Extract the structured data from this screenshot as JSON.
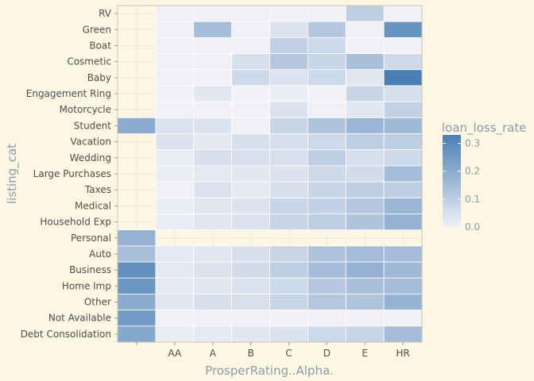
{
  "chart_data": {
    "type": "heatmap",
    "title": "",
    "xlabel": "ProsperRating..Alpha.",
    "ylabel": "listing_cat",
    "x_categories": [
      "",
      "AA",
      "A",
      "B",
      "C",
      "D",
      "E",
      "HR"
    ],
    "y_categories": [
      "RV",
      "Green",
      "Boat",
      "Cosmetic",
      "Baby",
      "Engagement Ring",
      "Motorcycle",
      "Student",
      "Vacation",
      "Wedding",
      "Large Purchases",
      "Taxes",
      "Medical",
      "Household Exp",
      "Personal",
      "Auto",
      "Business",
      "Home Imp",
      "Other",
      "Not Available",
      "Debt Consolidation"
    ],
    "values": [
      [
        null,
        0.0,
        0.0,
        0.0,
        0.0,
        0.0,
        0.1,
        0.0
      ],
      [
        null,
        0.0,
        0.15,
        0.0,
        0.04,
        0.12,
        0.0,
        0.27
      ],
      [
        null,
        0.0,
        0.0,
        0.0,
        0.09,
        0.07,
        0.0,
        0.0
      ],
      [
        null,
        0.0,
        0.0,
        0.05,
        0.12,
        0.08,
        0.14,
        0.07
      ],
      [
        null,
        0.0,
        0.0,
        0.07,
        0.04,
        0.07,
        0.03,
        0.33
      ],
      [
        null,
        0.0,
        0.03,
        0.0,
        0.01,
        0.0,
        0.08,
        0.05
      ],
      [
        null,
        0.0,
        0.0,
        0.0,
        0.04,
        0.0,
        0.03,
        0.09
      ],
      [
        0.2,
        0.04,
        0.04,
        0.0,
        0.08,
        0.13,
        0.17,
        0.16
      ],
      [
        null,
        0.04,
        0.02,
        0.05,
        0.05,
        0.07,
        0.1,
        0.1
      ],
      [
        null,
        0.01,
        0.05,
        0.05,
        0.05,
        0.1,
        0.05,
        0.07
      ],
      [
        null,
        0.01,
        0.02,
        0.03,
        0.04,
        0.07,
        0.06,
        0.15
      ],
      [
        null,
        0.0,
        0.04,
        0.02,
        0.05,
        0.08,
        0.1,
        0.1
      ],
      [
        null,
        0.01,
        0.03,
        0.04,
        0.08,
        0.09,
        0.12,
        0.17
      ],
      [
        null,
        0.01,
        0.03,
        0.04,
        0.08,
        0.1,
        0.13,
        0.18
      ],
      [
        0.18,
        null,
        null,
        null,
        null,
        null,
        null,
        null
      ],
      [
        0.14,
        0.02,
        0.03,
        0.05,
        0.08,
        0.13,
        0.15,
        0.15
      ],
      [
        0.28,
        0.02,
        0.04,
        0.06,
        0.1,
        0.15,
        0.18,
        0.16
      ],
      [
        0.26,
        0.02,
        0.03,
        0.04,
        0.07,
        0.12,
        0.14,
        0.15
      ],
      [
        0.2,
        0.03,
        0.05,
        0.05,
        0.08,
        0.12,
        0.13,
        0.18
      ],
      [
        0.25,
        0.0,
        0.0,
        0.0,
        0.0,
        0.0,
        0.0,
        0.0
      ],
      [
        0.21,
        0.01,
        0.02,
        0.03,
        0.04,
        0.07,
        0.08,
        0.15
      ]
    ],
    "legend": {
      "title": "loan_loss_rate",
      "ticks": [
        0.0,
        0.1,
        0.2,
        0.3
      ],
      "tick_labels": [
        "0.0",
        "0.1",
        "0.2",
        "0.3"
      ],
      "range": [
        0,
        0.33
      ],
      "low_color": "#f0f0f6",
      "high_color": "#4a7fb5",
      "position": "right"
    },
    "grid": true,
    "colors": {
      "background": "#fdf6e3",
      "grid": "#f3e8cf",
      "text": "#8a9ba8",
      "axis_text": "#4d4d4d",
      "tile_border": "#ffffff",
      "panel_border": "#cfc4ad"
    }
  }
}
